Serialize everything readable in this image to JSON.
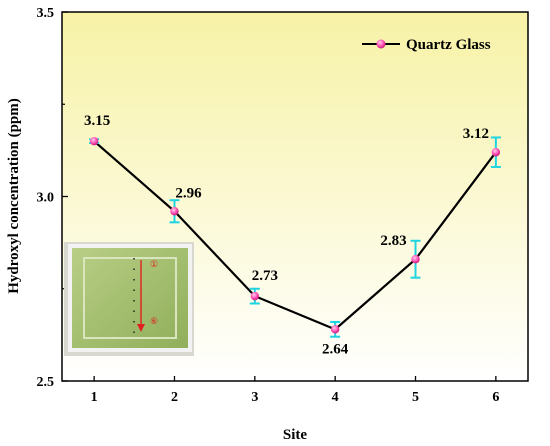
{
  "chart_data": {
    "type": "line",
    "title": "",
    "xlabel": "Site",
    "ylabel": "Hydroxyl concentration (ppm)",
    "x": [
      1,
      2,
      3,
      4,
      5,
      6
    ],
    "xlim": [
      0.6,
      6.4
    ],
    "ylim": [
      2.5,
      3.5
    ],
    "yticks": [
      2.5,
      3.0,
      3.5
    ],
    "ytick_labels": [
      "2.5",
      "3.0",
      "3.5"
    ],
    "xtick_labels": [
      "1",
      "2",
      "3",
      "4",
      "5",
      "6"
    ],
    "grid": false,
    "legend_position": "top-right",
    "series": [
      {
        "name": "Quartz Glass",
        "values": [
          3.15,
          2.96,
          2.73,
          2.64,
          2.83,
          3.12
        ],
        "errors": [
          0.005,
          0.03,
          0.02,
          0.02,
          0.05,
          0.04
        ],
        "labels": [
          "3.15",
          "2.96",
          "2.73",
          "2.64",
          "2.83",
          "3.12"
        ]
      }
    ],
    "inset": {
      "markers": [
        "①",
        "⑥"
      ]
    }
  },
  "colors": {
    "background_top": "#f7f2a6",
    "background_bottom": "#ffffff",
    "line": "#000000",
    "marker": "#ff4fb3",
    "error_bar": "#1fd4e0"
  }
}
